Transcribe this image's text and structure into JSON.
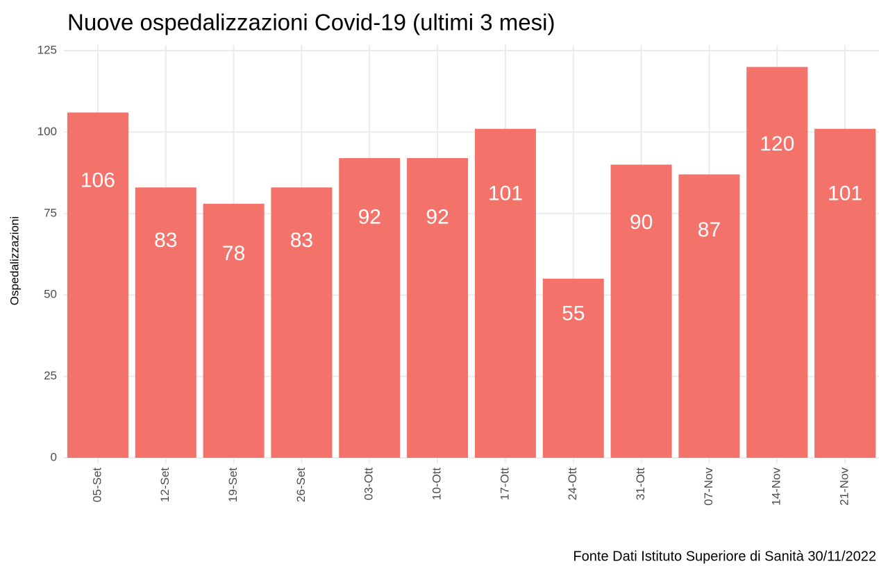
{
  "chart_data": {
    "type": "bar",
    "title": "Nuove ospedalizzazioni Covid-19 (ultimi 3 mesi)",
    "y_label": "Ospedalizzazioni",
    "caption": "Fonte Dati Istituto Superiore di Sanità 30/11/2022",
    "categories": [
      "05-Set",
      "12-Set",
      "19-Set",
      "26-Set",
      "03-Ott",
      "10-Ott",
      "17-Ott",
      "24-Ott",
      "31-Ott",
      "07-Nov",
      "14-Nov",
      "21-Nov"
    ],
    "values": [
      106,
      83,
      78,
      83,
      92,
      92,
      101,
      55,
      90,
      87,
      120,
      101
    ],
    "color": "#f3736b",
    "ylim": [
      0,
      125
    ],
    "yticks": [
      0,
      25,
      50,
      75,
      100,
      125
    ],
    "grid": true
  }
}
